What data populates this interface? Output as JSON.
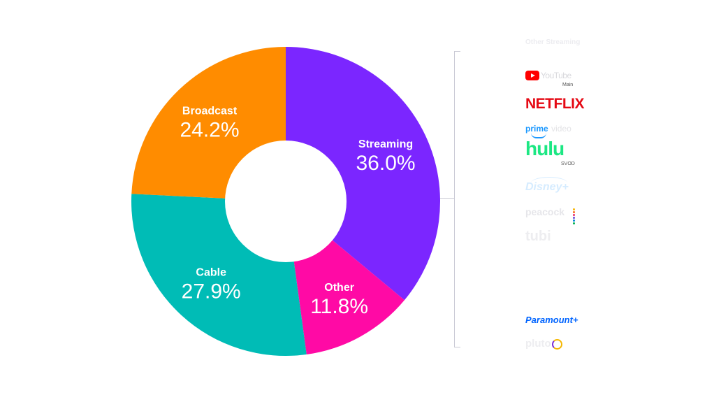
{
  "chart_data": {
    "type": "donut",
    "title": "",
    "slices": [
      {
        "name": "Streaming",
        "value": 36.0,
        "label": "36.0%",
        "color": "#7b26ff"
      },
      {
        "name": "Other",
        "value": 11.8,
        "label": "11.8%",
        "color": "#ff0aa5"
      },
      {
        "name": "Cable",
        "value": 27.9,
        "label": "27.9%",
        "color": "#00bcb6"
      },
      {
        "name": "Broadcast",
        "value": 24.2,
        "label": "24.2%",
        "color": "#ff8c00"
      }
    ]
  },
  "legend": {
    "header": "Other Streaming",
    "logos": [
      {
        "name": "YouTube",
        "icon": "youtube-logo",
        "text": "YouTube",
        "sub": "Main",
        "color": "#ff0000"
      },
      {
        "name": "Netflix",
        "icon": "netflix-logo",
        "text": "NETFLIX",
        "color": "#e50914"
      },
      {
        "name": "Prime Video",
        "icon": "prime-video-logo",
        "text_a": "prime",
        "text_b": "video",
        "color": "#1a98ff"
      },
      {
        "name": "Hulu",
        "icon": "hulu-logo",
        "text": "hulu",
        "sub": "SVOD",
        "color": "#1ce783"
      },
      {
        "name": "Disney+",
        "icon": "disney-plus-logo",
        "text": "Disney+",
        "color": "#d6ecff"
      },
      {
        "name": "Peacock",
        "icon": "peacock-logo",
        "text": "peacock",
        "color": "#e6e6ea"
      },
      {
        "name": "Tubi",
        "icon": "tubi-logo",
        "text": "tubi",
        "color": "#ededf0"
      },
      {
        "name": "Paramount+",
        "icon": "paramount-plus-logo",
        "text": "Paramount+",
        "color": "#0064ff"
      },
      {
        "name": "Pluto",
        "icon": "pluto-logo",
        "text": "pluto",
        "color": "#ededf0"
      }
    ]
  }
}
